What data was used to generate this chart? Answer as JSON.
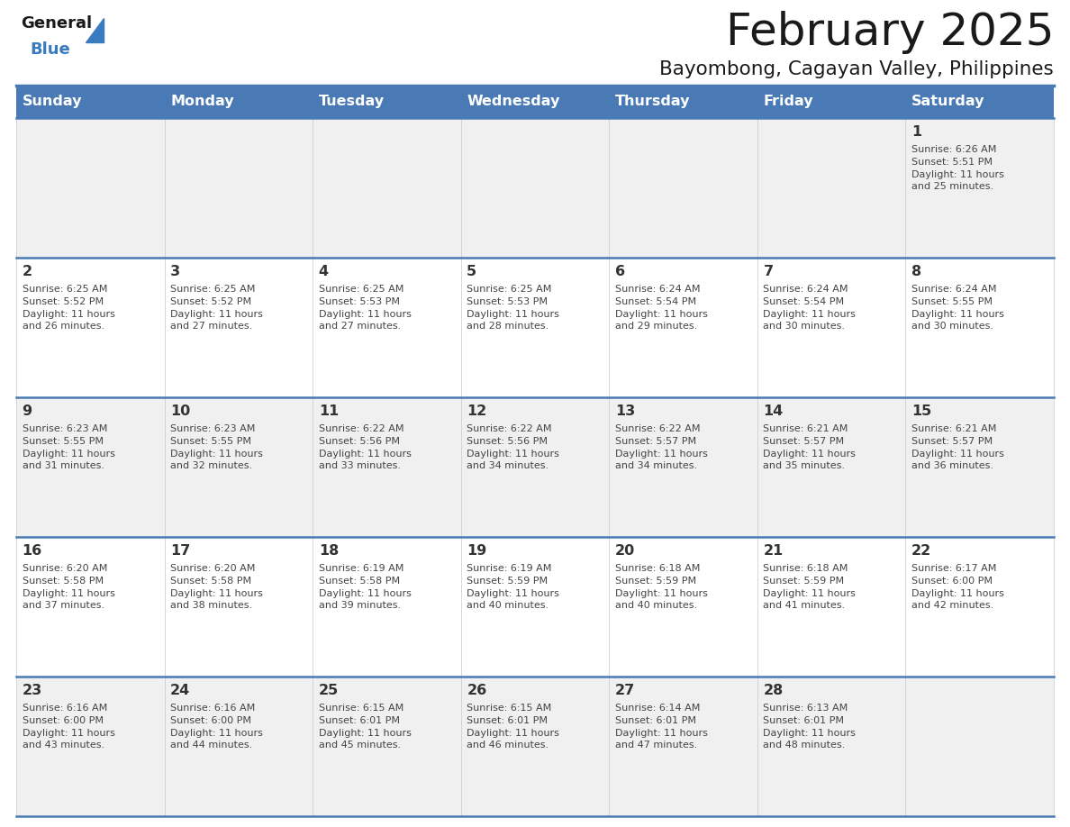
{
  "title": "February 2025",
  "subtitle": "Bayombong, Cagayan Valley, Philippines",
  "days_of_week": [
    "Sunday",
    "Monday",
    "Tuesday",
    "Wednesday",
    "Thursday",
    "Friday",
    "Saturday"
  ],
  "header_bg": "#4a7ab5",
  "header_text": "#ffffff",
  "cell_bg_light": "#f0f0f0",
  "cell_bg_white": "#ffffff",
  "border_color": "#4a7ab5",
  "border_light": "#c0c8d8",
  "day_number_color": "#333333",
  "cell_text_color": "#444444",
  "title_color": "#1a1a1a",
  "subtitle_color": "#1a1a1a",
  "logo_general_color": "#1a1a1a",
  "logo_blue_color": "#3a7abf",
  "calendar_data": [
    [
      null,
      null,
      null,
      null,
      null,
      null,
      {
        "day": 1,
        "sunrise": "6:26 AM",
        "sunset": "5:51 PM",
        "daylight": "11 hours and 25 minutes."
      }
    ],
    [
      {
        "day": 2,
        "sunrise": "6:25 AM",
        "sunset": "5:52 PM",
        "daylight": "11 hours and 26 minutes."
      },
      {
        "day": 3,
        "sunrise": "6:25 AM",
        "sunset": "5:52 PM",
        "daylight": "11 hours and 27 minutes."
      },
      {
        "day": 4,
        "sunrise": "6:25 AM",
        "sunset": "5:53 PM",
        "daylight": "11 hours and 27 minutes."
      },
      {
        "day": 5,
        "sunrise": "6:25 AM",
        "sunset": "5:53 PM",
        "daylight": "11 hours and 28 minutes."
      },
      {
        "day": 6,
        "sunrise": "6:24 AM",
        "sunset": "5:54 PM",
        "daylight": "11 hours and 29 minutes."
      },
      {
        "day": 7,
        "sunrise": "6:24 AM",
        "sunset": "5:54 PM",
        "daylight": "11 hours and 30 minutes."
      },
      {
        "day": 8,
        "sunrise": "6:24 AM",
        "sunset": "5:55 PM",
        "daylight": "11 hours and 30 minutes."
      }
    ],
    [
      {
        "day": 9,
        "sunrise": "6:23 AM",
        "sunset": "5:55 PM",
        "daylight": "11 hours and 31 minutes."
      },
      {
        "day": 10,
        "sunrise": "6:23 AM",
        "sunset": "5:55 PM",
        "daylight": "11 hours and 32 minutes."
      },
      {
        "day": 11,
        "sunrise": "6:22 AM",
        "sunset": "5:56 PM",
        "daylight": "11 hours and 33 minutes."
      },
      {
        "day": 12,
        "sunrise": "6:22 AM",
        "sunset": "5:56 PM",
        "daylight": "11 hours and 34 minutes."
      },
      {
        "day": 13,
        "sunrise": "6:22 AM",
        "sunset": "5:57 PM",
        "daylight": "11 hours and 34 minutes."
      },
      {
        "day": 14,
        "sunrise": "6:21 AM",
        "sunset": "5:57 PM",
        "daylight": "11 hours and 35 minutes."
      },
      {
        "day": 15,
        "sunrise": "6:21 AM",
        "sunset": "5:57 PM",
        "daylight": "11 hours and 36 minutes."
      }
    ],
    [
      {
        "day": 16,
        "sunrise": "6:20 AM",
        "sunset": "5:58 PM",
        "daylight": "11 hours and 37 minutes."
      },
      {
        "day": 17,
        "sunrise": "6:20 AM",
        "sunset": "5:58 PM",
        "daylight": "11 hours and 38 minutes."
      },
      {
        "day": 18,
        "sunrise": "6:19 AM",
        "sunset": "5:58 PM",
        "daylight": "11 hours and 39 minutes."
      },
      {
        "day": 19,
        "sunrise": "6:19 AM",
        "sunset": "5:59 PM",
        "daylight": "11 hours and 40 minutes."
      },
      {
        "day": 20,
        "sunrise": "6:18 AM",
        "sunset": "5:59 PM",
        "daylight": "11 hours and 40 minutes."
      },
      {
        "day": 21,
        "sunrise": "6:18 AM",
        "sunset": "5:59 PM",
        "daylight": "11 hours and 41 minutes."
      },
      {
        "day": 22,
        "sunrise": "6:17 AM",
        "sunset": "6:00 PM",
        "daylight": "11 hours and 42 minutes."
      }
    ],
    [
      {
        "day": 23,
        "sunrise": "6:16 AM",
        "sunset": "6:00 PM",
        "daylight": "11 hours and 43 minutes."
      },
      {
        "day": 24,
        "sunrise": "6:16 AM",
        "sunset": "6:00 PM",
        "daylight": "11 hours and 44 minutes."
      },
      {
        "day": 25,
        "sunrise": "6:15 AM",
        "sunset": "6:01 PM",
        "daylight": "11 hours and 45 minutes."
      },
      {
        "day": 26,
        "sunrise": "6:15 AM",
        "sunset": "6:01 PM",
        "daylight": "11 hours and 46 minutes."
      },
      {
        "day": 27,
        "sunrise": "6:14 AM",
        "sunset": "6:01 PM",
        "daylight": "11 hours and 47 minutes."
      },
      {
        "day": 28,
        "sunrise": "6:13 AM",
        "sunset": "6:01 PM",
        "daylight": "11 hours and 48 minutes."
      },
      null
    ]
  ]
}
